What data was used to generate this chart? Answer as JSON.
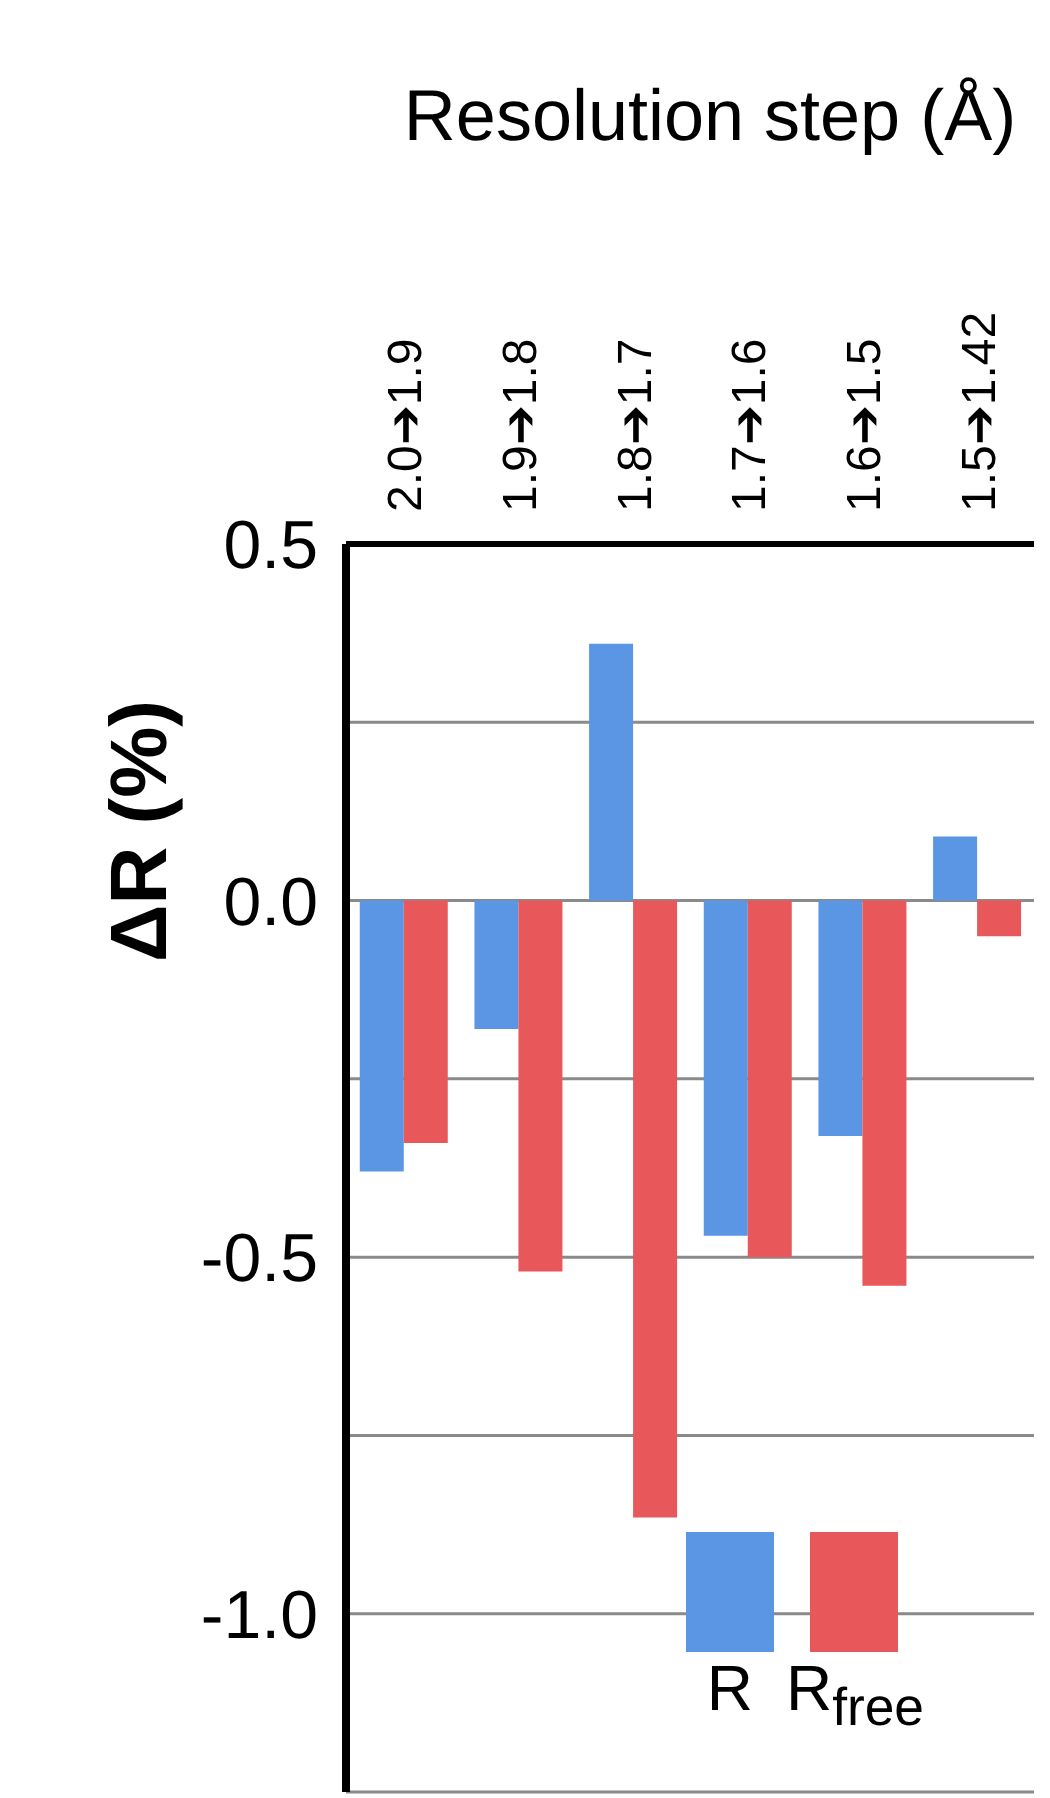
{
  "chart_data": {
    "type": "bar",
    "xlabel": "Resolution step (Å)",
    "ylabel": "ΔR (%)",
    "categories": [
      "2.0➔1.9",
      "1.9➔1.8",
      "1.8➔1.7",
      "1.7➔1.6",
      "1.6➔1.5",
      "1.5➔1.42"
    ],
    "series": [
      {
        "name": "R",
        "color": "#5a96e3",
        "values": [
          -0.38,
          -0.18,
          0.36,
          -0.47,
          -0.33,
          0.09
        ]
      },
      {
        "name": "R$_{free}$",
        "color": "#e8585a",
        "values": [
          -0.34,
          -0.52,
          -0.865,
          -0.5,
          -0.54,
          -0.05
        ]
      }
    ],
    "ylim": [
      -1.25,
      0.5
    ],
    "yticks": [
      0.5,
      {
        "value": 0.25,
        "label": null
      },
      {
        "value": 0,
        "label": "0.0"
      },
      {
        "value": -0.25,
        "label": null
      },
      -0.5,
      {
        "value": -0.75,
        "label": null
      },
      {
        "value": -1,
        "label": "-1.0"
      }
    ],
    "grid": "y",
    "legend": "bottom right"
  }
}
